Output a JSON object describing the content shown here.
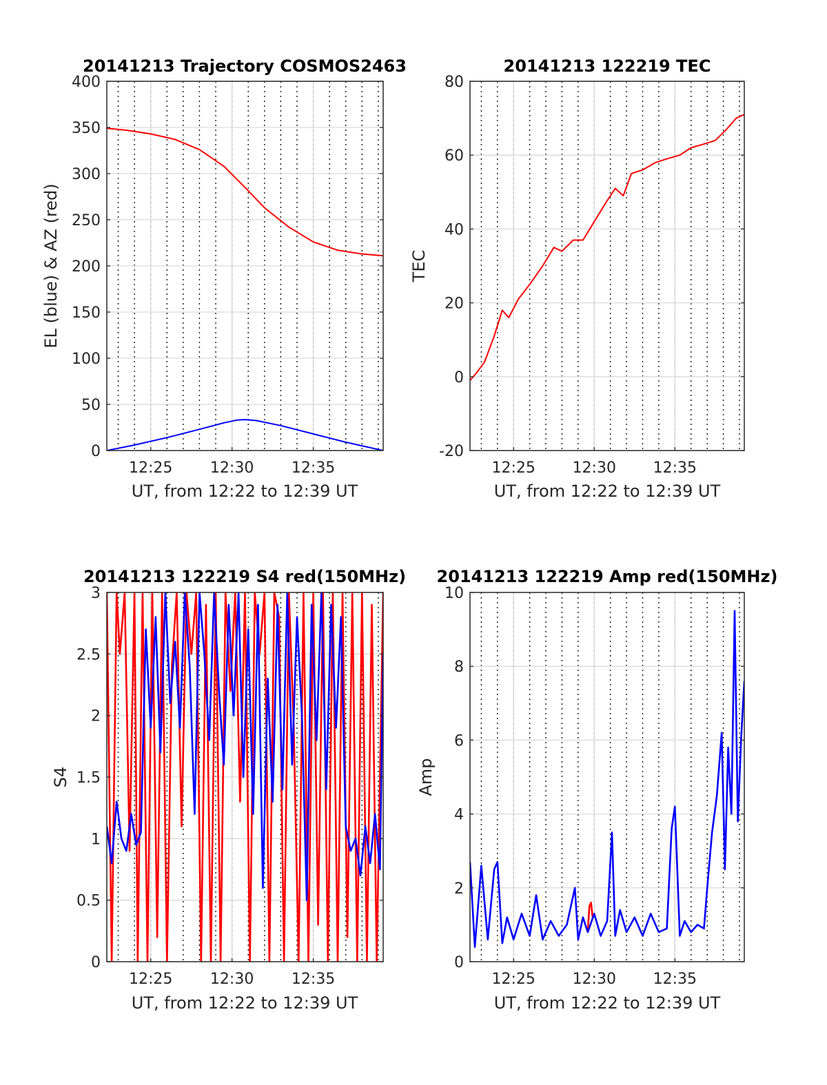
{
  "chart_data": [
    {
      "type": "line",
      "title": "20141213 Trajectory COSMOS2463",
      "xlabel": "UT, from 12:22 to 12:39 UT",
      "ylabel": "EL (blue) & AZ (red)",
      "xlim_minutes": [
        742.3,
        759.3
      ],
      "x_ticks": [
        {
          "v": 745,
          "label": "12:25"
        },
        {
          "v": 750,
          "label": "12:30"
        },
        {
          "v": 755,
          "label": "12:35"
        }
      ],
      "ylim": [
        0,
        400
      ],
      "y_ticks": [
        0,
        50,
        100,
        150,
        200,
        250,
        300,
        350,
        400
      ],
      "grid": true,
      "series": [
        {
          "color": "#ff0000",
          "x": [
            742.3,
            743.5,
            745,
            746.5,
            748,
            749.5,
            750.8,
            752,
            753.5,
            755,
            756.5,
            758,
            759.3
          ],
          "y": [
            349,
            347,
            343,
            337,
            326,
            308,
            285,
            263,
            242,
            226,
            217,
            213,
            211
          ]
        },
        {
          "color": "#0000ff",
          "x": [
            742.3,
            744,
            746,
            748,
            749.5,
            750.3,
            750.8,
            751.5,
            753,
            755,
            757,
            759.3
          ],
          "y": [
            0,
            6,
            14,
            23,
            30,
            33,
            33.5,
            32.5,
            27,
            18,
            9,
            0
          ]
        }
      ]
    },
    {
      "type": "line",
      "title": "20141213 122219 TEC",
      "xlabel": "UT, from 12:22 to 12:39 UT",
      "ylabel": "TEC",
      "xlim_minutes": [
        742.3,
        759.3
      ],
      "x_ticks": [
        {
          "v": 745,
          "label": "12:25"
        },
        {
          "v": 750,
          "label": "12:30"
        },
        {
          "v": 755,
          "label": "12:35"
        }
      ],
      "ylim": [
        -20,
        80
      ],
      "y_ticks": [
        -20,
        0,
        20,
        40,
        60,
        80
      ],
      "grid": true,
      "series": [
        {
          "color": "#ff0000",
          "x": [
            742.3,
            742.7,
            743.2,
            743.8,
            744.3,
            744.7,
            745.3,
            746,
            746.8,
            747.5,
            748,
            748.7,
            749.3,
            750,
            750.7,
            751.3,
            751.8,
            752.3,
            753,
            753.8,
            754.5,
            755.3,
            756,
            756.8,
            757.5,
            758.2,
            758.8,
            759.3
          ],
          "y": [
            -1,
            1,
            4,
            11,
            18,
            16,
            21,
            25,
            30,
            35,
            34,
            37,
            37,
            42,
            47,
            51,
            49,
            55,
            56,
            58,
            59,
            60,
            62,
            63,
            64,
            67,
            70,
            71
          ]
        }
      ]
    },
    {
      "type": "line",
      "title": "20141213 122219 S4 red(150MHz)",
      "xlabel": "UT, from 12:22 to 12:39 UT",
      "ylabel": "S4",
      "xlim_minutes": [
        742.3,
        759.3
      ],
      "x_ticks": [
        {
          "v": 745,
          "label": "12:25"
        },
        {
          "v": 750,
          "label": "12:30"
        },
        {
          "v": 755,
          "label": "12:35"
        }
      ],
      "ylim": [
        0,
        3
      ],
      "y_ticks": [
        {
          "v": 0,
          "label": "0"
        },
        {
          "v": 0.5,
          "label": "0.5"
        },
        {
          "v": 1,
          "label": "1"
        },
        {
          "v": 1.5,
          "label": "1.5"
        },
        {
          "v": 2,
          "label": "2"
        },
        {
          "v": 2.5,
          "label": "2.5"
        },
        {
          "v": 3,
          "label": "3"
        }
      ],
      "grid": true,
      "series": [
        {
          "color": "#ff0000",
          "x": [
            742.3,
            742.6,
            742.9,
            743.1,
            743.4,
            743.7,
            744.0,
            744.2,
            744.5,
            744.8,
            745.1,
            745.4,
            745.7,
            746.0,
            746.3,
            746.6,
            746.9,
            747.2,
            747.5,
            747.8,
            748.1,
            748.4,
            748.7,
            749.0,
            749.3,
            749.6,
            749.9,
            750.2,
            750.5,
            750.8,
            751.1,
            751.4,
            751.7,
            752.0,
            752.3,
            752.6,
            752.9,
            753.2,
            753.5,
            753.8,
            754.1,
            754.4,
            754.7,
            755.0,
            755.3,
            755.6,
            755.9,
            756.2,
            756.5,
            756.8,
            757.1,
            757.4,
            757.7,
            758.0,
            758.3,
            758.6,
            758.9,
            759.3
          ],
          "y": [
            3,
            0,
            3,
            2.5,
            3,
            0.9,
            3,
            0,
            3,
            0,
            3,
            0.2,
            3,
            0,
            2.4,
            3,
            1.1,
            3,
            2.5,
            3,
            0,
            2.9,
            0,
            3,
            0,
            3,
            2.2,
            3,
            1.3,
            3,
            0,
            3,
            2.5,
            3,
            0,
            3,
            2.8,
            0,
            3,
            1.9,
            0,
            3,
            0,
            3,
            0.3,
            3,
            0,
            3,
            0,
            3,
            0.2,
            3,
            0,
            3,
            0,
            2.9,
            0,
            3
          ]
        },
        {
          "color": "#0000ff",
          "x": [
            742.3,
            742.6,
            742.9,
            743.2,
            743.5,
            743.8,
            744.1,
            744.4,
            744.7,
            745.0,
            745.3,
            745.6,
            745.9,
            746.2,
            746.5,
            746.8,
            747.1,
            747.4,
            747.7,
            748.0,
            748.3,
            748.6,
            748.9,
            749.2,
            749.5,
            749.8,
            750.1,
            750.4,
            750.7,
            751.0,
            751.3,
            751.6,
            751.9,
            752.2,
            752.5,
            752.8,
            753.1,
            753.4,
            753.7,
            754.0,
            754.3,
            754.6,
            754.9,
            755.2,
            755.5,
            755.8,
            756.1,
            756.4,
            756.7,
            757.0,
            757.3,
            757.6,
            757.9,
            758.2,
            758.5,
            758.8,
            759.1,
            759.3
          ],
          "y": [
            1.1,
            0.8,
            1.3,
            1.0,
            0.9,
            1.2,
            0.95,
            1.05,
            2.7,
            1.9,
            2.8,
            1.7,
            3,
            2.1,
            2.6,
            1.9,
            3,
            2.4,
            1.2,
            3,
            2.5,
            1.8,
            3,
            2.2,
            1.6,
            2.9,
            2.0,
            3,
            1.5,
            2.7,
            1.2,
            2.9,
            0.6,
            2.3,
            1.3,
            2.9,
            1.4,
            3,
            1.6,
            2.8,
            2.0,
            0.5,
            2.9,
            1.8,
            3,
            1.4,
            2.9,
            1.9,
            2.8,
            1.1,
            0.9,
            1.0,
            0.7,
            1.1,
            0.8,
            1.2,
            0.75,
            2.5
          ]
        }
      ]
    },
    {
      "type": "line",
      "title": "20141213 122219 Amp red(150MHz)",
      "xlabel": "UT, from 12:22 to 12:39 UT",
      "ylabel": "Amp",
      "xlim_minutes": [
        742.3,
        759.3
      ],
      "x_ticks": [
        {
          "v": 745,
          "label": "12:25"
        },
        {
          "v": 750,
          "label": "12:30"
        },
        {
          "v": 755,
          "label": "12:35"
        }
      ],
      "ylim": [
        0,
        10
      ],
      "y_ticks": [
        0,
        2,
        4,
        6,
        8,
        10
      ],
      "grid": true,
      "series": [
        {
          "color": "#ff0000",
          "x": [
            749.6,
            749.7,
            749.8,
            749.9
          ],
          "y": [
            0.8,
            1.5,
            1.6,
            1.2
          ]
        },
        {
          "color": "#0000ff",
          "x": [
            742.3,
            742.6,
            743.0,
            743.4,
            743.8,
            744.0,
            744.3,
            744.6,
            745.0,
            745.5,
            746.0,
            746.4,
            746.8,
            747.3,
            747.8,
            748.3,
            748.8,
            749.0,
            749.3,
            749.6,
            750.0,
            750.4,
            750.8,
            751.1,
            751.3,
            751.6,
            752.0,
            752.5,
            753.0,
            753.5,
            754.0,
            754.5,
            754.8,
            755.0,
            755.3,
            755.6,
            756.0,
            756.4,
            756.8,
            757.0,
            757.3,
            757.6,
            757.9,
            758.1,
            758.3,
            758.5,
            758.7,
            758.9,
            759.1,
            759.3
          ],
          "y": [
            2.7,
            0.4,
            2.6,
            0.6,
            2.5,
            2.7,
            0.5,
            1.2,
            0.6,
            1.3,
            0.7,
            1.8,
            0.6,
            1.1,
            0.7,
            1.0,
            2.0,
            0.6,
            1.2,
            0.8,
            1.3,
            0.7,
            1.1,
            3.5,
            0.7,
            1.4,
            0.8,
            1.2,
            0.7,
            1.3,
            0.8,
            0.9,
            3.6,
            4.2,
            0.7,
            1.1,
            0.8,
            1.0,
            0.9,
            2.0,
            3.5,
            4.5,
            6.2,
            2.5,
            5.8,
            4.0,
            9.5,
            3.8,
            6.0,
            7.6
          ]
        }
      ]
    }
  ]
}
